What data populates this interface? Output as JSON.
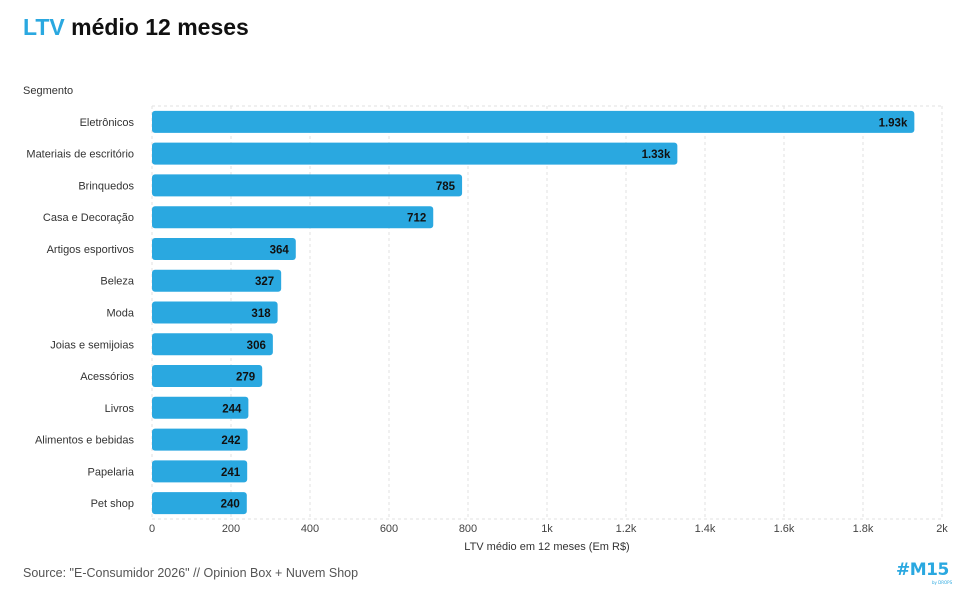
{
  "title": {
    "accent": "LTV",
    "rest": " médio 12 meses"
  },
  "source": "Source: \"E-Consumidor 2026\" // Opinion Box + Nuvem Shop",
  "logo": {
    "main": "#M15",
    "sub": "by DROPS"
  },
  "colors": {
    "bar": "#2aa8e0",
    "accent": "#2aa8e0",
    "grid": "#e2e2e2"
  },
  "chart_data": {
    "type": "bar",
    "orientation": "horizontal",
    "ylabel": "Segmento",
    "xlabel": "LTV médio em 12 meses (Em R$)",
    "xlim": [
      0,
      2000
    ],
    "xticks": [
      0,
      200,
      400,
      600,
      800,
      1000,
      1200,
      1400,
      1600,
      1800,
      2000
    ],
    "xtick_labels": [
      "0",
      "200",
      "400",
      "600",
      "800",
      "1k",
      "1.2k",
      "1.4k",
      "1.6k",
      "1.8k",
      "2k"
    ],
    "categories": [
      "Eletrônicos",
      "Materiais de escritório",
      "Brinquedos",
      "Casa e Decoração",
      "Artigos esportivos",
      "Beleza",
      "Moda",
      "Joias e semijoias",
      "Acessórios",
      "Livros",
      "Alimentos e bebidas",
      "Papelaria",
      "Pet shop"
    ],
    "values": [
      1930,
      1330,
      785,
      712,
      364,
      327,
      318,
      306,
      279,
      244,
      242,
      241,
      240
    ],
    "value_labels": [
      "1.93k",
      "1.33k",
      "785",
      "712",
      "364",
      "327",
      "318",
      "306",
      "279",
      "244",
      "242",
      "241",
      "240"
    ]
  }
}
